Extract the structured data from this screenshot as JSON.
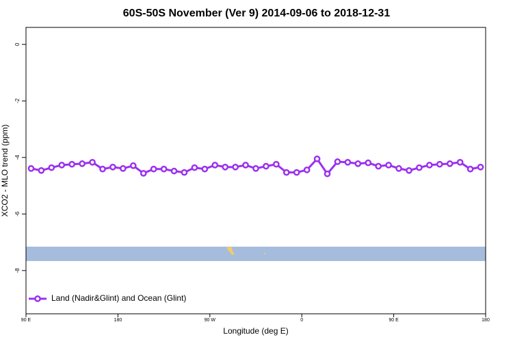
{
  "chart_data": {
    "type": "line",
    "title": "60S-50S November (Ver 9)   2014-09-06 to 2018-12-31",
    "x_label": "Longitude (deg E)",
    "y_label": "XCO2 - MLO trend (ppm)",
    "x": [
      95,
      105,
      115,
      125,
      135,
      145,
      155,
      165,
      175,
      185,
      195,
      205,
      215,
      225,
      235,
      245,
      255,
      265,
      275,
      285,
      295,
      305,
      315,
      325,
      335,
      345,
      355,
      365,
      375,
      385,
      395,
      405,
      415,
      425,
      435,
      445,
      455,
      465,
      475,
      485,
      495,
      505,
      515,
      525,
      535
    ],
    "series": [
      {
        "name": "Land (Nadir&Glint) and Ocean (Glint)",
        "color": "#9b30ef",
        "values": [
          -4.39,
          -4.46,
          -4.36,
          -4.27,
          -4.24,
          -4.22,
          -4.17,
          -4.41,
          -4.34,
          -4.39,
          -4.29,
          -4.56,
          -4.41,
          -4.41,
          -4.48,
          -4.53,
          -4.36,
          -4.41,
          -4.27,
          -4.34,
          -4.34,
          -4.27,
          -4.39,
          -4.31,
          -4.24,
          -4.53,
          -4.53,
          -4.44,
          -4.05,
          -4.58,
          -4.15,
          -4.17,
          -4.22,
          -4.19,
          -4.31,
          -4.27,
          -4.39,
          -4.46,
          -4.36,
          -4.27,
          -4.24,
          -4.22,
          -4.17,
          -4.41,
          -4.34
        ]
      }
    ],
    "xlim": [
      90,
      540
    ],
    "xticks": [
      {
        "value": 90,
        "label": "90 E"
      },
      {
        "value": 180,
        "label": "180"
      },
      {
        "value": 270,
        "label": "90 W"
      },
      {
        "value": 360,
        "label": "0"
      },
      {
        "value": 450,
        "label": "90 E"
      },
      {
        "value": 540,
        "label": "180"
      }
    ],
    "ylim": [
      -9.53,
      0.6
    ],
    "yticks": [
      0,
      -2,
      -4,
      -6,
      -8
    ],
    "legend": "bottom-left"
  }
}
